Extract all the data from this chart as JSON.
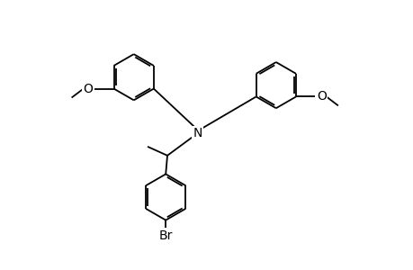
{
  "bg_color": "#ffffff",
  "line_color": "#000000",
  "lw": 1.3,
  "fs": 10,
  "dbg": 0.06,
  "fig_width": 4.6,
  "fig_height": 3.0,
  "dpi": 100,
  "xlim": [
    0,
    10
  ],
  "ylim": [
    0,
    6.5
  ]
}
